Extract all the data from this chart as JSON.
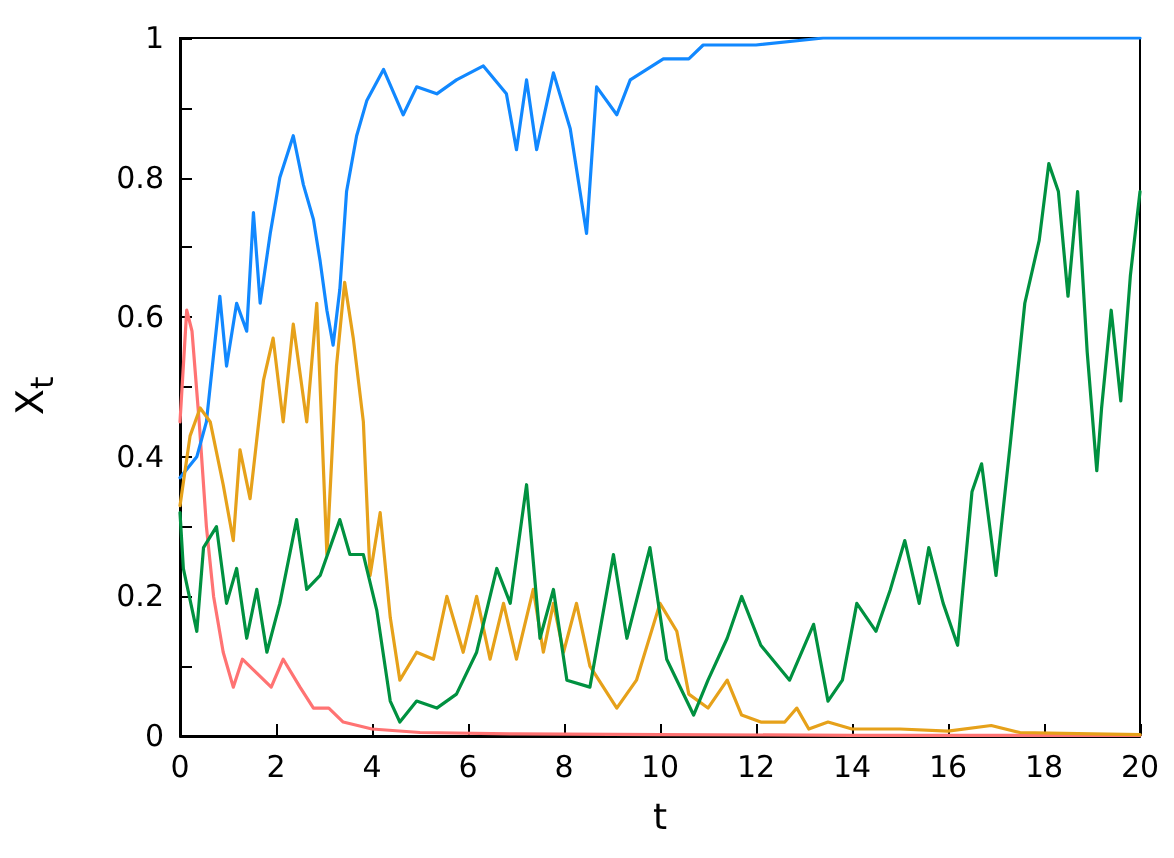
{
  "chart_data": {
    "type": "line",
    "xlabel": "t",
    "ylabel": "X$_{t}$",
    "xlim": [
      0,
      20
    ],
    "ylim": [
      0,
      1
    ],
    "xticks": [
      0,
      2,
      4,
      6,
      8,
      10,
      12,
      14,
      16,
      18,
      20
    ],
    "yticks": [
      0,
      {
        "value": 0.1,
        "label": null
      },
      0.2,
      {
        "value": 0.3,
        "label": null
      },
      0.4,
      {
        "value": 0.5,
        "label": null
      },
      0.6,
      {
        "value": 0.7,
        "label": null
      },
      0.8,
      {
        "value": 0.9,
        "label": null
      },
      1
    ],
    "grid": false,
    "marker": "none",
    "line_style": "solid",
    "series": [
      {
        "color": "#ff7373",
        "x": [
          0,
          0.14,
          0.25,
          0.4,
          0.55,
          0.7,
          0.9,
          1.11,
          1.3,
          1.6,
          1.9,
          2.15,
          2.5,
          2.78,
          3.1,
          3.4,
          4,
          5,
          7,
          10,
          14,
          20
        ],
        "values": [
          0.45,
          0.61,
          0.58,
          0.45,
          0.3,
          0.2,
          0.12,
          0.07,
          0.11,
          0.09,
          0.07,
          0.11,
          0.07,
          0.04,
          0.04,
          0.02,
          0.01,
          0.005,
          0.003,
          0.002,
          0.001,
          0.001
        ]
      },
      {
        "color": "#1188ff",
        "x": [
          0,
          0.35,
          0.55,
          0.83,
          0.97,
          1.18,
          1.39,
          1.53,
          1.67,
          1.88,
          2.08,
          2.36,
          2.57,
          2.78,
          2.92,
          3.06,
          3.19,
          3.33,
          3.47,
          3.68,
          3.89,
          4.24,
          4.65,
          4.93,
          5.35,
          5.76,
          6.32,
          6.8,
          7.01,
          7.22,
          7.43,
          7.78,
          8.13,
          8.47,
          8.68,
          9.1,
          9.38,
          10.07,
          10.6,
          10.9,
          12,
          13.4,
          14,
          16,
          18,
          20
        ],
        "values": [
          0.37,
          0.4,
          0.45,
          0.63,
          0.53,
          0.62,
          0.58,
          0.75,
          0.62,
          0.72,
          0.8,
          0.86,
          0.79,
          0.74,
          0.68,
          0.61,
          0.56,
          0.64,
          0.78,
          0.86,
          0.91,
          0.955,
          0.89,
          0.93,
          0.92,
          0.94,
          0.96,
          0.92,
          0.84,
          0.94,
          0.84,
          0.95,
          0.87,
          0.72,
          0.93,
          0.89,
          0.94,
          0.97,
          0.97,
          0.99,
          0.99,
          1,
          1,
          1,
          1,
          1
        ]
      },
      {
        "color": "#e6a11a",
        "x": [
          0,
          0.21,
          0.42,
          0.63,
          0.9,
          1.11,
          1.25,
          1.46,
          1.74,
          1.94,
          2.15,
          2.36,
          2.64,
          2.85,
          3.06,
          3.26,
          3.43,
          3.61,
          3.82,
          3.96,
          4.17,
          4.38,
          4.58,
          4.93,
          5.28,
          5.56,
          5.9,
          6.18,
          6.46,
          6.74,
          7.01,
          7.36,
          7.57,
          7.78,
          7.99,
          8.26,
          8.54,
          9.1,
          9.51,
          10,
          10.35,
          10.6,
          11,
          11.4,
          11.7,
          12.1,
          12.6,
          12.85,
          13.1,
          13.5,
          14,
          15,
          16,
          16.9,
          17.5,
          19,
          20
        ],
        "values": [
          0.33,
          0.43,
          0.47,
          0.45,
          0.36,
          0.28,
          0.41,
          0.34,
          0.51,
          0.57,
          0.45,
          0.59,
          0.45,
          0.62,
          0.26,
          0.53,
          0.65,
          0.57,
          0.45,
          0.23,
          0.32,
          0.17,
          0.08,
          0.12,
          0.11,
          0.2,
          0.12,
          0.2,
          0.11,
          0.19,
          0.11,
          0.21,
          0.12,
          0.19,
          0.12,
          0.19,
          0.1,
          0.04,
          0.08,
          0.19,
          0.15,
          0.06,
          0.04,
          0.08,
          0.03,
          0.02,
          0.02,
          0.04,
          0.01,
          0.02,
          0.01,
          0.01,
          0.007,
          0.015,
          0.005,
          0.003,
          0.002
        ]
      },
      {
        "color": "#009140",
        "x": [
          0,
          0.07,
          0.35,
          0.49,
          0.76,
          0.97,
          1.18,
          1.39,
          1.6,
          1.81,
          2.08,
          2.43,
          2.64,
          2.92,
          3.33,
          3.54,
          3.82,
          4.1,
          4.38,
          4.58,
          4.93,
          5.35,
          5.76,
          6.18,
          6.6,
          6.88,
          7.22,
          7.5,
          7.78,
          8.06,
          8.54,
          9.03,
          9.31,
          9.79,
          10.14,
          10.7,
          11,
          11.4,
          11.7,
          12.1,
          12.7,
          13.2,
          13.5,
          13.8,
          14.1,
          14.5,
          14.8,
          15.1,
          15.4,
          15.6,
          15.9,
          16.2,
          16.5,
          16.7,
          17,
          17.3,
          17.6,
          17.9,
          18.1,
          18.3,
          18.5,
          18.7,
          18.9,
          19.1,
          19.2,
          19.4,
          19.6,
          19.8,
          20
        ],
        "values": [
          0.32,
          0.24,
          0.15,
          0.27,
          0.3,
          0.19,
          0.24,
          0.14,
          0.21,
          0.12,
          0.19,
          0.31,
          0.21,
          0.23,
          0.31,
          0.26,
          0.26,
          0.18,
          0.05,
          0.02,
          0.05,
          0.04,
          0.06,
          0.12,
          0.24,
          0.19,
          0.36,
          0.14,
          0.21,
          0.08,
          0.07,
          0.26,
          0.14,
          0.27,
          0.11,
          0.03,
          0.08,
          0.14,
          0.2,
          0.13,
          0.08,
          0.16,
          0.05,
          0.08,
          0.19,
          0.15,
          0.21,
          0.28,
          0.19,
          0.27,
          0.19,
          0.13,
          0.35,
          0.39,
          0.23,
          0.42,
          0.62,
          0.71,
          0.82,
          0.78,
          0.63,
          0.78,
          0.55,
          0.38,
          0.47,
          0.61,
          0.48,
          0.66,
          0.78
        ]
      }
    ]
  }
}
